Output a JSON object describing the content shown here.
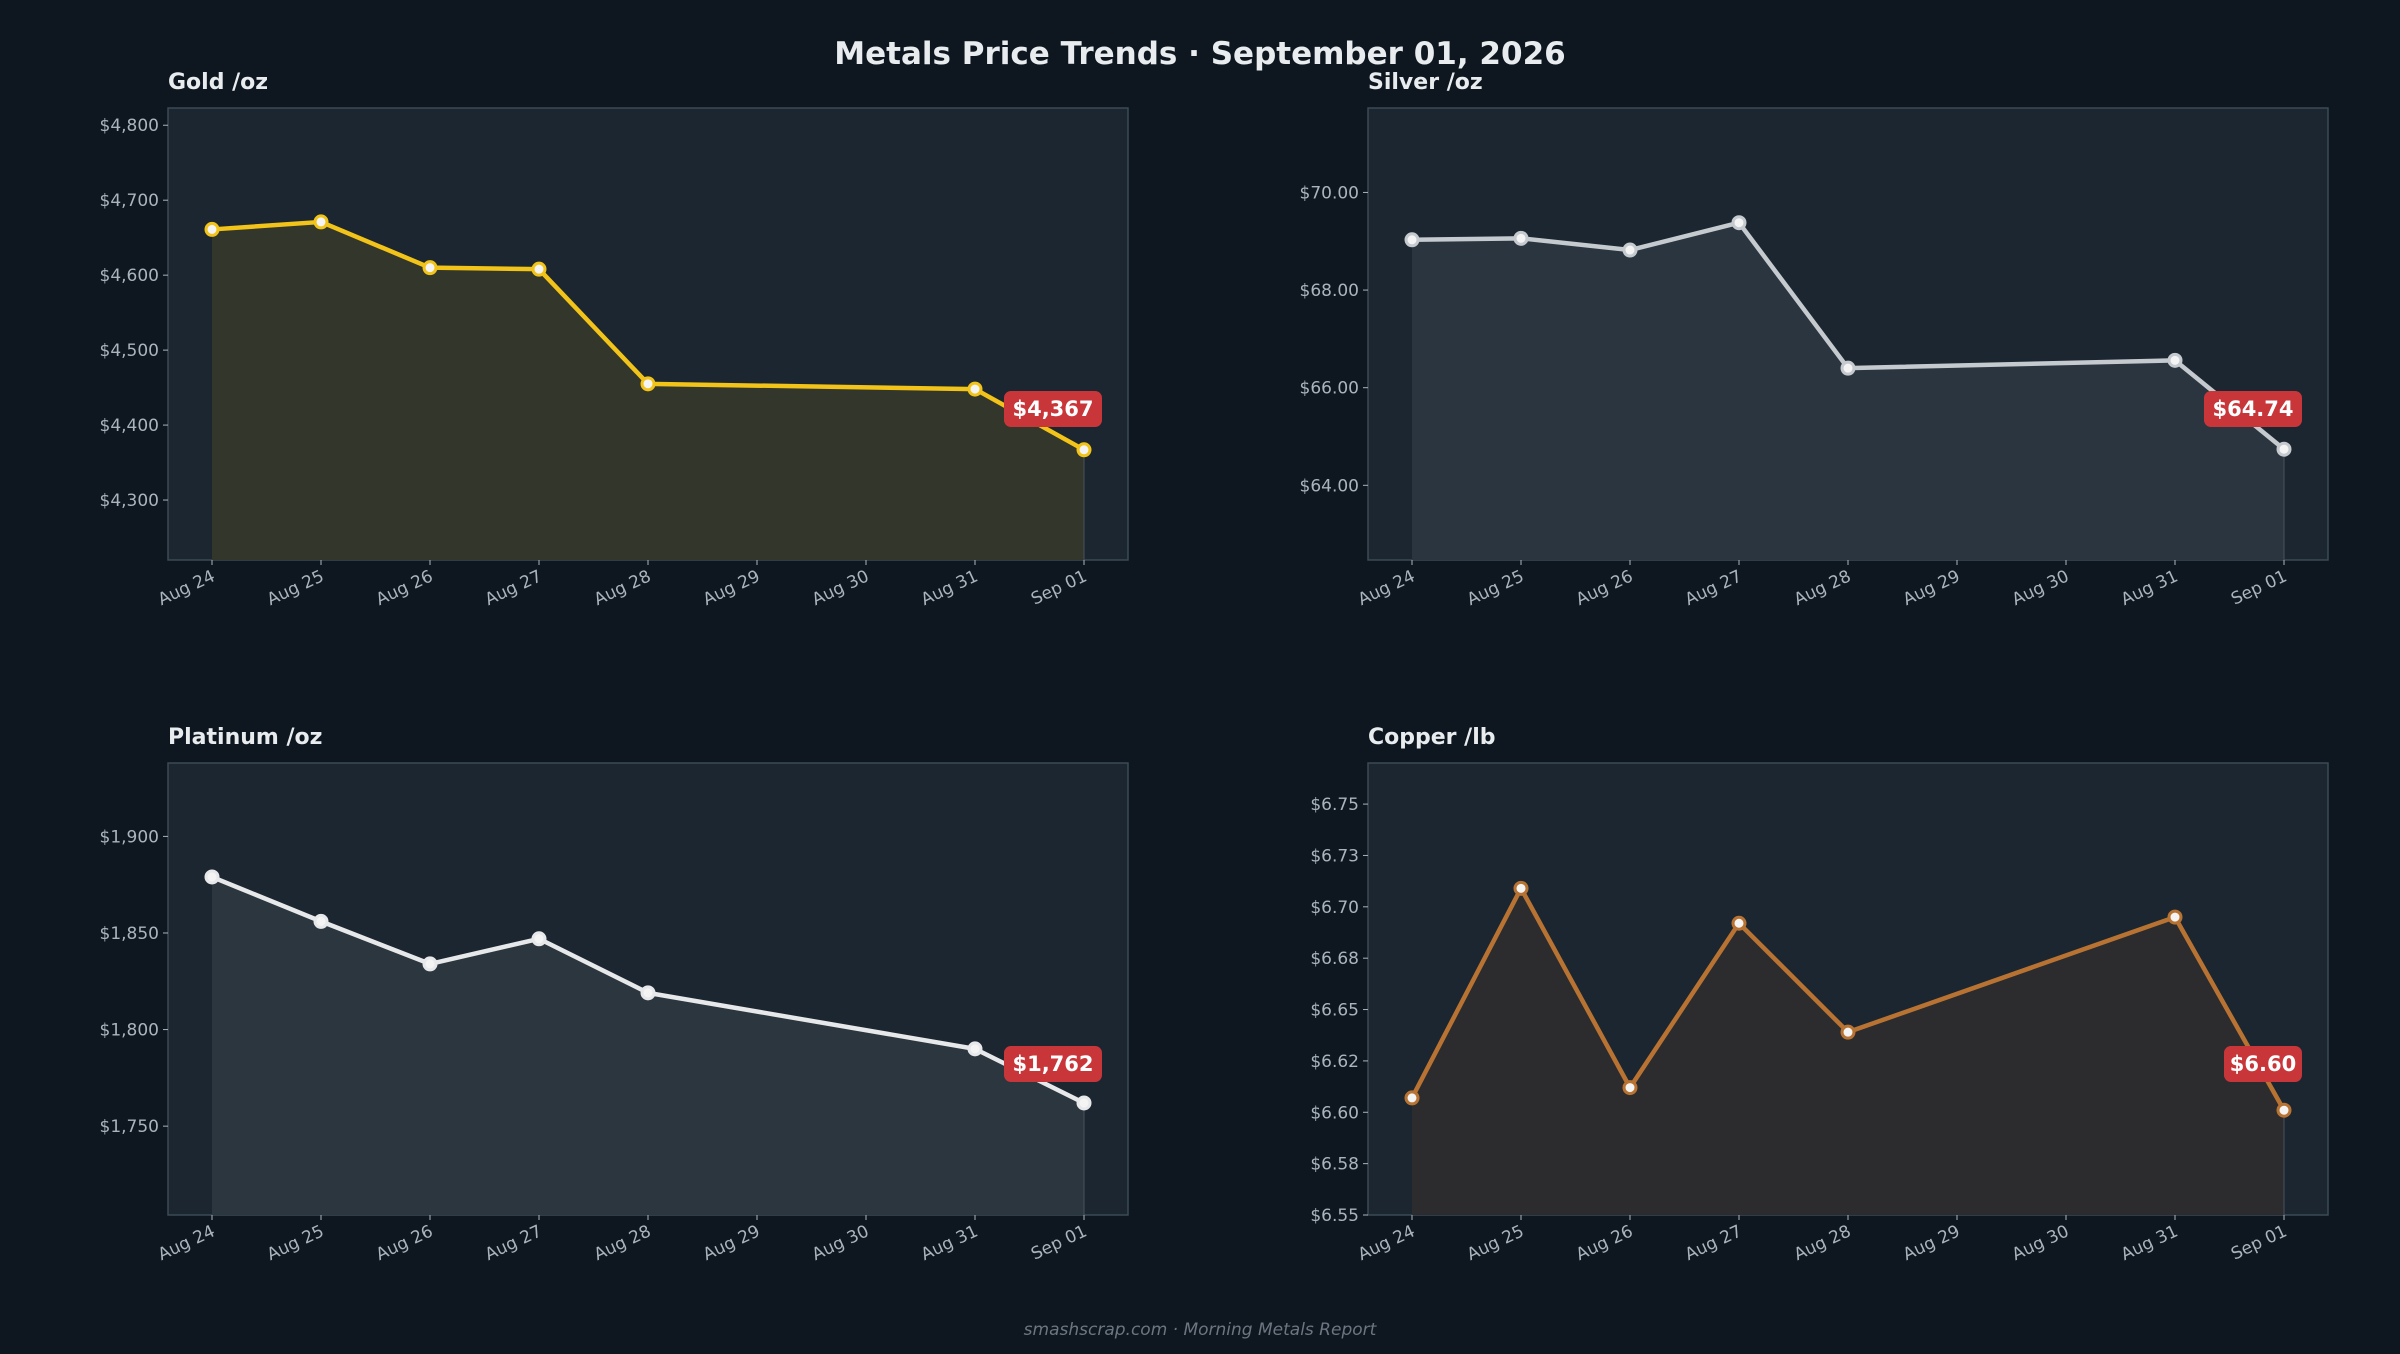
{
  "page": {
    "title": "Metals Price Trends  ·  September 01, 2026",
    "footer": "smashscrap.com  ·  Morning Metals Report"
  },
  "colors": {
    "background": "#0e1720",
    "panel": "#1b2630",
    "panel_border": "#3a4a56",
    "tick_text": "#aab4bd",
    "title_text": "#e8ecef",
    "badge": "#c9363a",
    "gold": "#f2c318",
    "silver": "#c5cacf",
    "platinum": "#e6e8ea",
    "copper": "#b87333"
  },
  "chart_data": [
    {
      "type": "line",
      "title": "Gold  /oz",
      "x": [
        "Aug 24",
        "Aug 25",
        "Aug 26",
        "Aug 27",
        "Aug 28",
        "Aug 31",
        "Sep 01"
      ],
      "x_ticks": [
        "Aug 24",
        "Aug 25",
        "Aug 26",
        "Aug 27",
        "Aug 28",
        "Aug 29",
        "Aug 30",
        "Aug 31",
        "Sep 01"
      ],
      "series": [
        {
          "values": [
            4661,
            4671,
            4610,
            4608,
            4455,
            4448,
            4367
          ]
        }
      ],
      "y_ticks": [
        4300,
        4400,
        4500,
        4600,
        4700,
        4800
      ],
      "y_tick_labels": [
        "$4,300",
        "$4,400",
        "$4,500",
        "$4,600",
        "$4,700",
        "$4,800"
      ],
      "ylim": [
        4220,
        4823
      ],
      "last_label": "$4,367",
      "color": "#f2c318",
      "fill": "#33362a",
      "grid": false,
      "xlabel": "",
      "ylabel": ""
    },
    {
      "type": "line",
      "title": "Silver  /oz",
      "x": [
        "Aug 24",
        "Aug 25",
        "Aug 26",
        "Aug 27",
        "Aug 28",
        "Aug 31",
        "Sep 01"
      ],
      "x_ticks": [
        "Aug 24",
        "Aug 25",
        "Aug 26",
        "Aug 27",
        "Aug 28",
        "Aug 29",
        "Aug 30",
        "Aug 31",
        "Sep 01"
      ],
      "series": [
        {
          "values": [
            69.03,
            69.06,
            68.82,
            69.38,
            66.4,
            66.56,
            64.74
          ]
        }
      ],
      "y_ticks": [
        64,
        66,
        68,
        70
      ],
      "y_tick_labels": [
        "$64.00",
        "$66.00",
        "$68.00",
        "$70.00"
      ],
      "ylim": [
        62.47,
        71.73
      ],
      "last_label": "$64.74",
      "color": "#c5cacf",
      "fill": "#2a3540",
      "grid": false,
      "xlabel": "",
      "ylabel": ""
    },
    {
      "type": "line",
      "title": "Platinum  /oz",
      "x": [
        "Aug 24",
        "Aug 25",
        "Aug 26",
        "Aug 27",
        "Aug 28",
        "Aug 31",
        "Sep 01"
      ],
      "x_ticks": [
        "Aug 24",
        "Aug 25",
        "Aug 26",
        "Aug 27",
        "Aug 28",
        "Aug 29",
        "Aug 30",
        "Aug 31",
        "Sep 01"
      ],
      "series": [
        {
          "values": [
            1879,
            1856,
            1834,
            1847,
            1819,
            1790,
            1762
          ]
        }
      ],
      "y_ticks": [
        1750,
        1800,
        1850,
        1900
      ],
      "y_tick_labels": [
        "$1,750",
        "$1,800",
        "$1,850",
        "$1,900"
      ],
      "ylim": [
        1704,
        1938
      ],
      "last_label": "$1,762",
      "color": "#e6e8ea",
      "fill": "#2c363e",
      "grid": false,
      "xlabel": "",
      "ylabel": ""
    },
    {
      "type": "line",
      "title": "Copper  /lb",
      "x": [
        "Aug 24",
        "Aug 25",
        "Aug 26",
        "Aug 27",
        "Aug 28",
        "Aug 31",
        "Sep 01"
      ],
      "x_ticks": [
        "Aug 24",
        "Aug 25",
        "Aug 26",
        "Aug 27",
        "Aug 28",
        "Aug 29",
        "Aug 30",
        "Aug 31",
        "Sep 01"
      ],
      "series": [
        {
          "values": [
            6.607,
            6.709,
            6.612,
            6.692,
            6.639,
            6.695,
            6.601
          ]
        }
      ],
      "y_ticks": [
        6.55,
        6.575,
        6.6,
        6.625,
        6.65,
        6.675,
        6.7,
        6.725,
        6.75
      ],
      "y_tick_labels": [
        "$6.55",
        "$6.58",
        "$6.60",
        "$6.62",
        "$6.65",
        "$6.68",
        "$6.70",
        "$6.73",
        "$6.75"
      ],
      "ylim": [
        6.55,
        6.77
      ],
      "last_label": "$6.60",
      "color": "#b87333",
      "fill": "#2c2c2e",
      "grid": false,
      "xlabel": "",
      "ylabel": ""
    }
  ]
}
